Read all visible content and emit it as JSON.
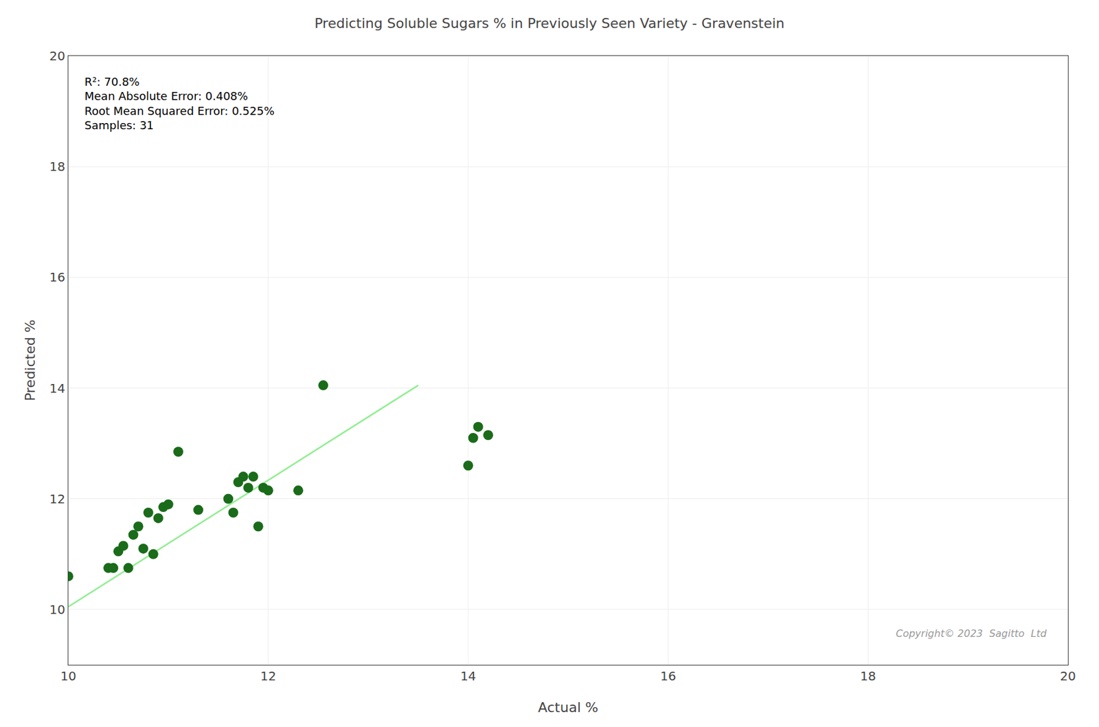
{
  "chart_data": {
    "type": "scatter",
    "title": "Predicting Soluble Sugars % in Previously Seen Variety - Gravenstein",
    "xlabel": "Actual %",
    "ylabel": "Predicted %",
    "xlim": [
      10,
      20
    ],
    "ylim": [
      9,
      20
    ],
    "xticks": [
      10,
      12,
      14,
      16,
      18,
      20
    ],
    "yticks": [
      10,
      12,
      14,
      16,
      18,
      20
    ],
    "grid": true,
    "series": [
      {
        "type": "line",
        "color": "#90ee90",
        "x": [
          10.0,
          13.5
        ],
        "values": [
          10.05,
          14.05
        ]
      },
      {
        "type": "scatter",
        "color": "#1a6b1a",
        "marker": "circle",
        "x": [
          10.0,
          10.4,
          10.45,
          10.5,
          10.55,
          10.6,
          10.65,
          10.7,
          10.75,
          10.8,
          10.85,
          10.9,
          10.95,
          11.0,
          11.1,
          11.3,
          11.6,
          11.65,
          11.7,
          11.75,
          11.8,
          11.85,
          11.9,
          11.95,
          12.0,
          12.3,
          12.55,
          14.0,
          14.05,
          14.1,
          14.2
        ],
        "values": [
          10.6,
          10.75,
          10.75,
          11.05,
          11.15,
          10.75,
          11.35,
          11.5,
          11.1,
          11.75,
          11.0,
          11.65,
          11.85,
          11.9,
          12.85,
          11.8,
          12.0,
          11.75,
          12.3,
          12.4,
          12.2,
          12.4,
          11.5,
          12.2,
          12.15,
          12.15,
          14.05,
          12.6,
          13.1,
          13.3,
          13.15
        ]
      }
    ],
    "annotations": [
      "R²: 70.8%\nMean Absolute Error: 0.408%\nRoot Mean Squared Error: 0.525%\nSamples: 31",
      "Copyright© 2023  Sagitto  Ltd"
    ]
  }
}
